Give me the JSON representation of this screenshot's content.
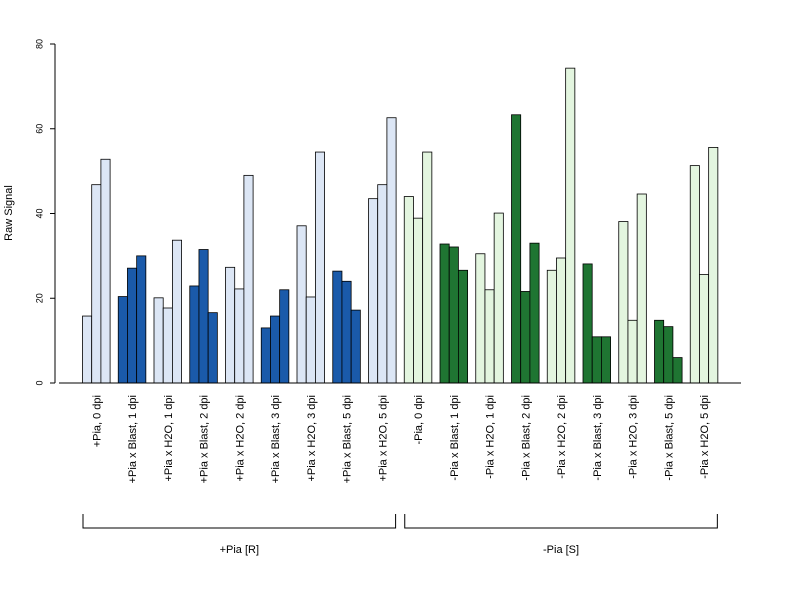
{
  "chart_data": {
    "type": "bar",
    "ylabel": "Raw Signal",
    "ylim": [
      0,
      80
    ],
    "yticks": [
      0,
      20,
      40,
      60,
      80
    ],
    "grid": false,
    "categories": [
      "+Pia, 0 dpi",
      "+Pia x Blast, 1 dpi",
      "+Pia x H2O, 1 dpi",
      "+Pia x Blast, 2 dpi",
      "+Pia x H2O, 2 dpi",
      "+Pia x Blast, 3 dpi",
      "+Pia x H2O, 3 dpi",
      "+Pia x Blast, 5 dpi",
      "+Pia x H2O, 5 dpi",
      "-Pia, 0 dpi",
      "-Pia x Blast, 1 dpi",
      "-Pia x H2O, 1 dpi",
      "-Pia x Blast, 2 dpi",
      "-Pia x H2O, 2 dpi",
      "-Pia x Blast, 3 dpi",
      "-Pia x H2O, 3 dpi",
      "-Pia x Blast, 5 dpi",
      "-Pia x H2O, 5 dpi"
    ],
    "values": [
      [
        15.8,
        46.8,
        52.8
      ],
      [
        20.4,
        27.1,
        30.0
      ],
      [
        20.1,
        17.7,
        33.7
      ],
      [
        22.9,
        31.5,
        16.6
      ],
      [
        27.3,
        22.2,
        49.0
      ],
      [
        13.0,
        15.8,
        22.0
      ],
      [
        37.1,
        20.3,
        54.5
      ],
      [
        26.4,
        24.0,
        17.2
      ],
      [
        43.5,
        46.8,
        62.6
      ],
      [
        44.0,
        38.9,
        54.5
      ],
      [
        32.8,
        32.1,
        26.6
      ],
      [
        30.5,
        22.0,
        40.1
      ],
      [
        63.3,
        21.6,
        33.0
      ],
      [
        26.6,
        29.5,
        74.3
      ],
      [
        28.1,
        10.9,
        10.9
      ],
      [
        38.1,
        14.8,
        44.6
      ],
      [
        14.8,
        13.3,
        6.0
      ],
      [
        51.3,
        25.6,
        55.6
      ]
    ],
    "colors": [
      "#dce6f5",
      "#1a5aaa",
      "#dce6f5",
      "#1a5aaa",
      "#dce6f5",
      "#1a5aaa",
      "#dce6f5",
      "#1a5aaa",
      "#dce6f5",
      "#e3f5df",
      "#1f7532",
      "#e3f5df",
      "#1f7532",
      "#e3f5df",
      "#1f7532",
      "#e3f5df",
      "#1f7532",
      "#e3f5df"
    ],
    "groups": [
      {
        "label": "+Pia [R]",
        "categories": [
          0,
          8
        ]
      },
      {
        "label": "-Pia [S]",
        "categories": [
          9,
          17
        ]
      }
    ]
  }
}
